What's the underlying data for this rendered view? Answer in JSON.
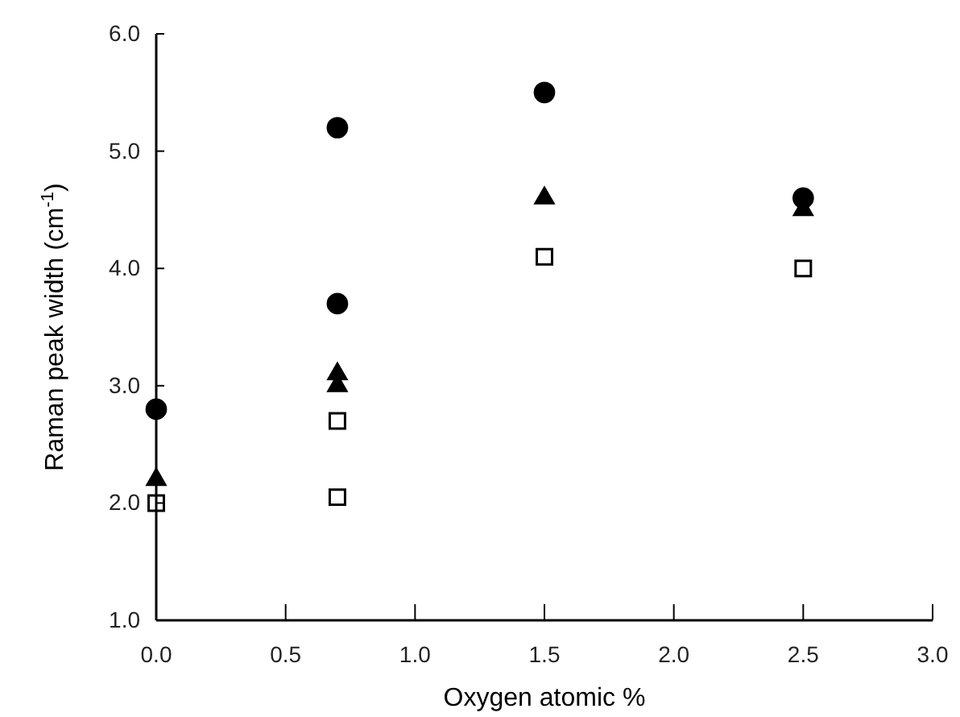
{
  "chart_data": {
    "type": "scatter",
    "xlabel": "Oxygen atomic %",
    "ylabel": "Raman peak width (cm$^{-1}$)",
    "xlim": [
      0,
      3
    ],
    "xticks": [
      {
        "value": 0,
        "label": "0.0"
      },
      {
        "value": 0.5,
        "label": "0.5"
      },
      {
        "value": 1,
        "label": "1.0"
      },
      {
        "value": 1.5,
        "label": "1.5"
      },
      {
        "value": 2,
        "label": "2.0"
      },
      {
        "value": 2.5,
        "label": "2.5"
      },
      {
        "value": 3,
        "label": "3.0"
      }
    ],
    "ylim": [
      1,
      6
    ],
    "yticks": [
      {
        "value": 1,
        "label": "1.0"
      },
      {
        "value": 2,
        "label": "2.0"
      },
      {
        "value": 3,
        "label": "3.0"
      },
      {
        "value": 4,
        "label": "4.0"
      },
      {
        "value": 5,
        "label": "5.0"
      },
      {
        "value": 6,
        "label": "6.0"
      }
    ],
    "grid": false,
    "series": [
      {
        "color": "#000000",
        "marker": "circle",
        "x": [
          0,
          0.7,
          0.7,
          1.5,
          2.5
        ],
        "values": [
          2.8,
          5.2,
          3.7,
          5.5,
          4.6
        ]
      },
      {
        "color": "#000000",
        "marker": "triangle",
        "x": [
          0,
          0.7,
          0.7,
          1.5,
          2.5
        ],
        "values": [
          2.2,
          3.1,
          3.0,
          4.6,
          4.5
        ]
      },
      {
        "color": "#000000",
        "marker": "square",
        "x": [
          0,
          0.7,
          0.7,
          1.5,
          2.5
        ],
        "values": [
          2.0,
          2.7,
          2.05,
          4.1,
          4.0
        ]
      }
    ]
  }
}
